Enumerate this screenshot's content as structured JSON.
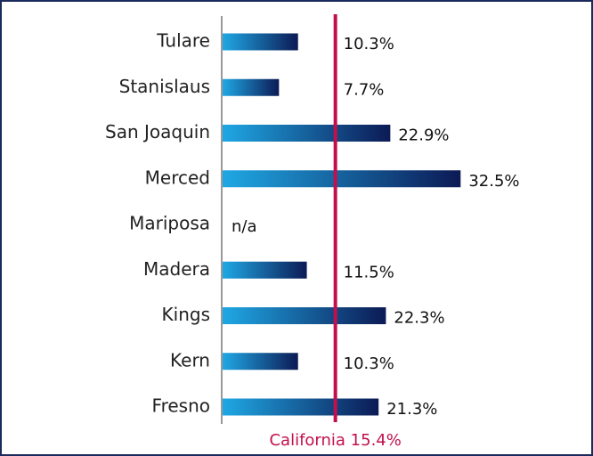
{
  "chart_data": {
    "type": "barh",
    "categories": [
      "Tulare",
      "Stanislaus",
      "San Joaquin",
      "Merced",
      "Mariposa",
      "Madera",
      "Kings",
      "Kern",
      "Fresno"
    ],
    "values": [
      10.3,
      7.7,
      22.9,
      32.5,
      null,
      11.5,
      22.3,
      10.3,
      21.3
    ],
    "value_labels": [
      "10.3%",
      "7.7%",
      "22.9%",
      "32.5%",
      "n/a",
      "11.5%",
      "22.3%",
      "10.3%",
      "21.3%"
    ],
    "xlim": [
      0,
      40
    ],
    "color_start": "#1fa8e4",
    "color_end": "#0c1a55",
    "reference": {
      "value": 15.4,
      "label": "California 15.4%",
      "color": "#c2104e"
    }
  }
}
